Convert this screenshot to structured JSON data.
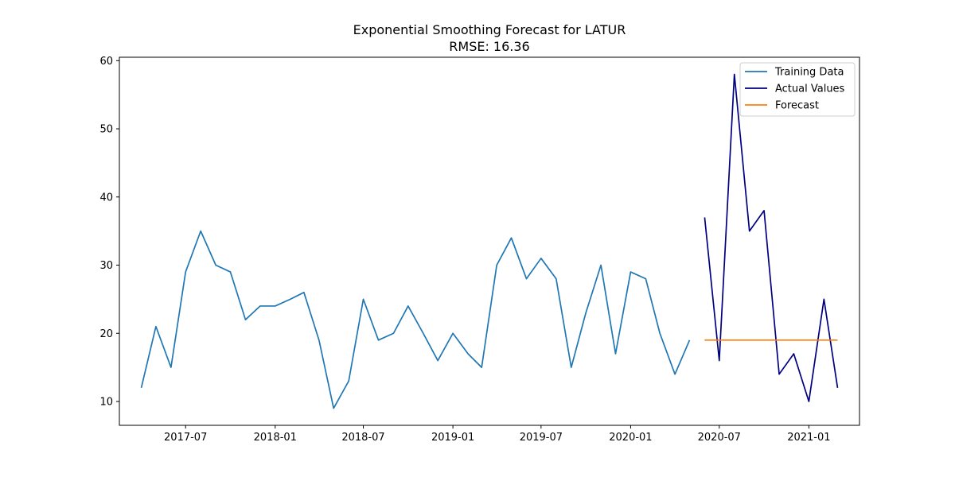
{
  "chart_data": {
    "type": "line",
    "title": "Exponential Smoothing Forecast for LATUR",
    "subtitle": "RMSE: 16.36",
    "xlabel": "",
    "ylabel": "",
    "x_range": [
      "2017-02-15",
      "2021-04-15"
    ],
    "ylim": [
      6.5,
      60.5
    ],
    "grid": false,
    "legend_position": "top-right",
    "x_ticks": [
      {
        "date": "2017-07-01",
        "label": "2017-07"
      },
      {
        "date": "2018-01-01",
        "label": "2018-01"
      },
      {
        "date": "2018-07-01",
        "label": "2018-07"
      },
      {
        "date": "2019-01-01",
        "label": "2019-01"
      },
      {
        "date": "2019-07-01",
        "label": "2019-07"
      },
      {
        "date": "2020-01-01",
        "label": "2020-01"
      },
      {
        "date": "2020-07-01",
        "label": "2020-07"
      },
      {
        "date": "2021-01-01",
        "label": "2021-01"
      }
    ],
    "y_ticks": [
      10,
      20,
      30,
      40,
      50,
      60
    ],
    "series": [
      {
        "name": "Training Data",
        "color": "#1f77b4",
        "x": [
          "2017-04-01",
          "2017-05-01",
          "2017-06-01",
          "2017-07-01",
          "2017-08-01",
          "2017-09-01",
          "2017-10-01",
          "2017-11-01",
          "2017-12-01",
          "2018-01-01",
          "2018-02-01",
          "2018-03-01",
          "2018-04-01",
          "2018-05-01",
          "2018-06-01",
          "2018-07-01",
          "2018-08-01",
          "2018-09-01",
          "2018-10-01",
          "2018-11-01",
          "2018-12-01",
          "2019-01-01",
          "2019-02-01",
          "2019-03-01",
          "2019-04-01",
          "2019-05-01",
          "2019-06-01",
          "2019-07-01",
          "2019-08-01",
          "2019-09-01",
          "2019-10-01",
          "2019-11-01",
          "2019-12-01",
          "2020-01-01",
          "2020-02-01",
          "2020-03-01",
          "2020-04-01",
          "2020-05-01"
        ],
        "values": [
          12,
          21,
          15,
          29,
          35,
          30,
          29,
          22,
          24,
          24,
          25,
          26,
          19,
          9,
          13,
          25,
          19,
          20,
          24,
          20,
          16,
          20,
          17,
          15,
          30,
          34,
          28,
          31,
          28,
          15,
          23,
          30,
          17,
          29,
          28,
          20,
          14,
          19
        ]
      },
      {
        "name": "Actual Values",
        "color": "#000080",
        "x": [
          "2020-06-01",
          "2020-07-01",
          "2020-08-01",
          "2020-09-01",
          "2020-10-01",
          "2020-11-01",
          "2020-12-01",
          "2021-01-01",
          "2021-02-01",
          "2021-03-01"
        ],
        "values": [
          37,
          16,
          58,
          35,
          38,
          14,
          17,
          10,
          25,
          12
        ]
      },
      {
        "name": "Forecast",
        "color": "#ff7f0e",
        "x": [
          "2020-06-01",
          "2020-07-01",
          "2020-08-01",
          "2020-09-01",
          "2020-10-01",
          "2020-11-01",
          "2020-12-01",
          "2021-01-01",
          "2021-02-01",
          "2021-03-01"
        ],
        "values": [
          19,
          19,
          19,
          19,
          19,
          19,
          19,
          19,
          19,
          19
        ]
      }
    ]
  }
}
